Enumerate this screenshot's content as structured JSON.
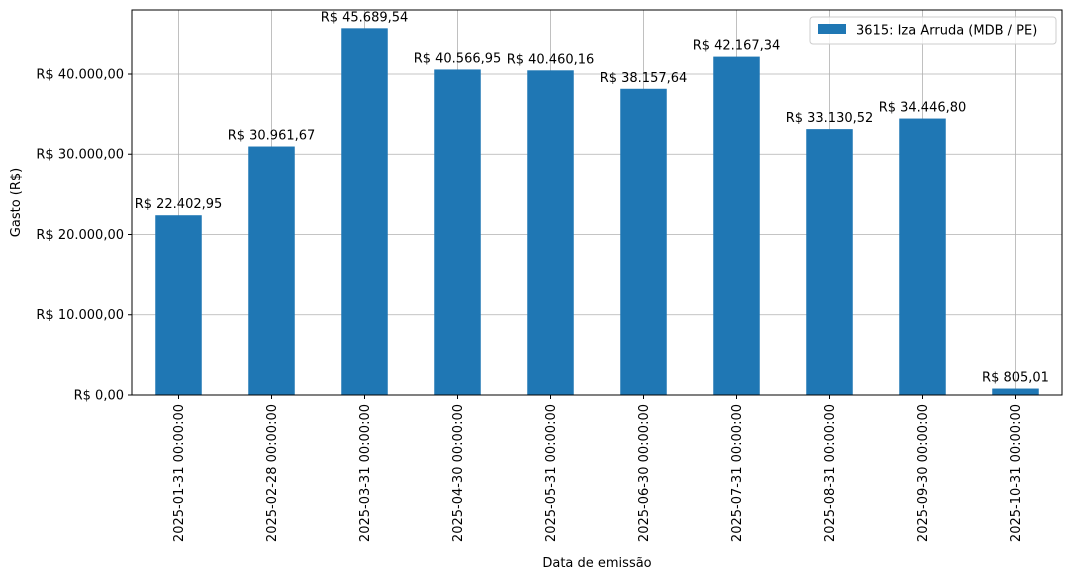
{
  "chart_data": {
    "type": "bar",
    "categories": [
      "2025-01-31 00:00:00",
      "2025-02-28 00:00:00",
      "2025-03-31 00:00:00",
      "2025-04-30 00:00:00",
      "2025-05-31 00:00:00",
      "2025-06-30 00:00:00",
      "2025-07-31 00:00:00",
      "2025-08-31 00:00:00",
      "2025-09-30 00:00:00",
      "2025-10-31 00:00:00"
    ],
    "series": [
      {
        "name": "3615: Iza Arruda (MDB / PE)",
        "color": "#1f77b4",
        "values": [
          22402.95,
          30961.67,
          45689.54,
          40566.95,
          40460.16,
          38157.64,
          42167.34,
          33130.52,
          34446.8,
          805.01
        ],
        "data_labels": [
          "R$ 22.402,95",
          "R$ 30.961,67",
          "R$ 45.689,54",
          "R$ 40.566,95",
          "R$ 40.460,16",
          "R$ 38.157,64",
          "R$ 42.167,34",
          "R$ 33.130,52",
          "R$ 34.446,80",
          "R$ 805,01"
        ]
      }
    ],
    "xlabel": "Data de emissão",
    "ylabel": "Gasto (R$)",
    "ylim": [
      0,
      47974
    ],
    "yticks": [
      0,
      10000,
      20000,
      30000,
      40000
    ],
    "ytick_labels": [
      "R$ 0,00",
      "R$ 10.000,00",
      "R$ 20.000,00",
      "R$ 30.000,00",
      "R$ 40.000,00"
    ],
    "grid": true,
    "legend_position": "top-right"
  }
}
